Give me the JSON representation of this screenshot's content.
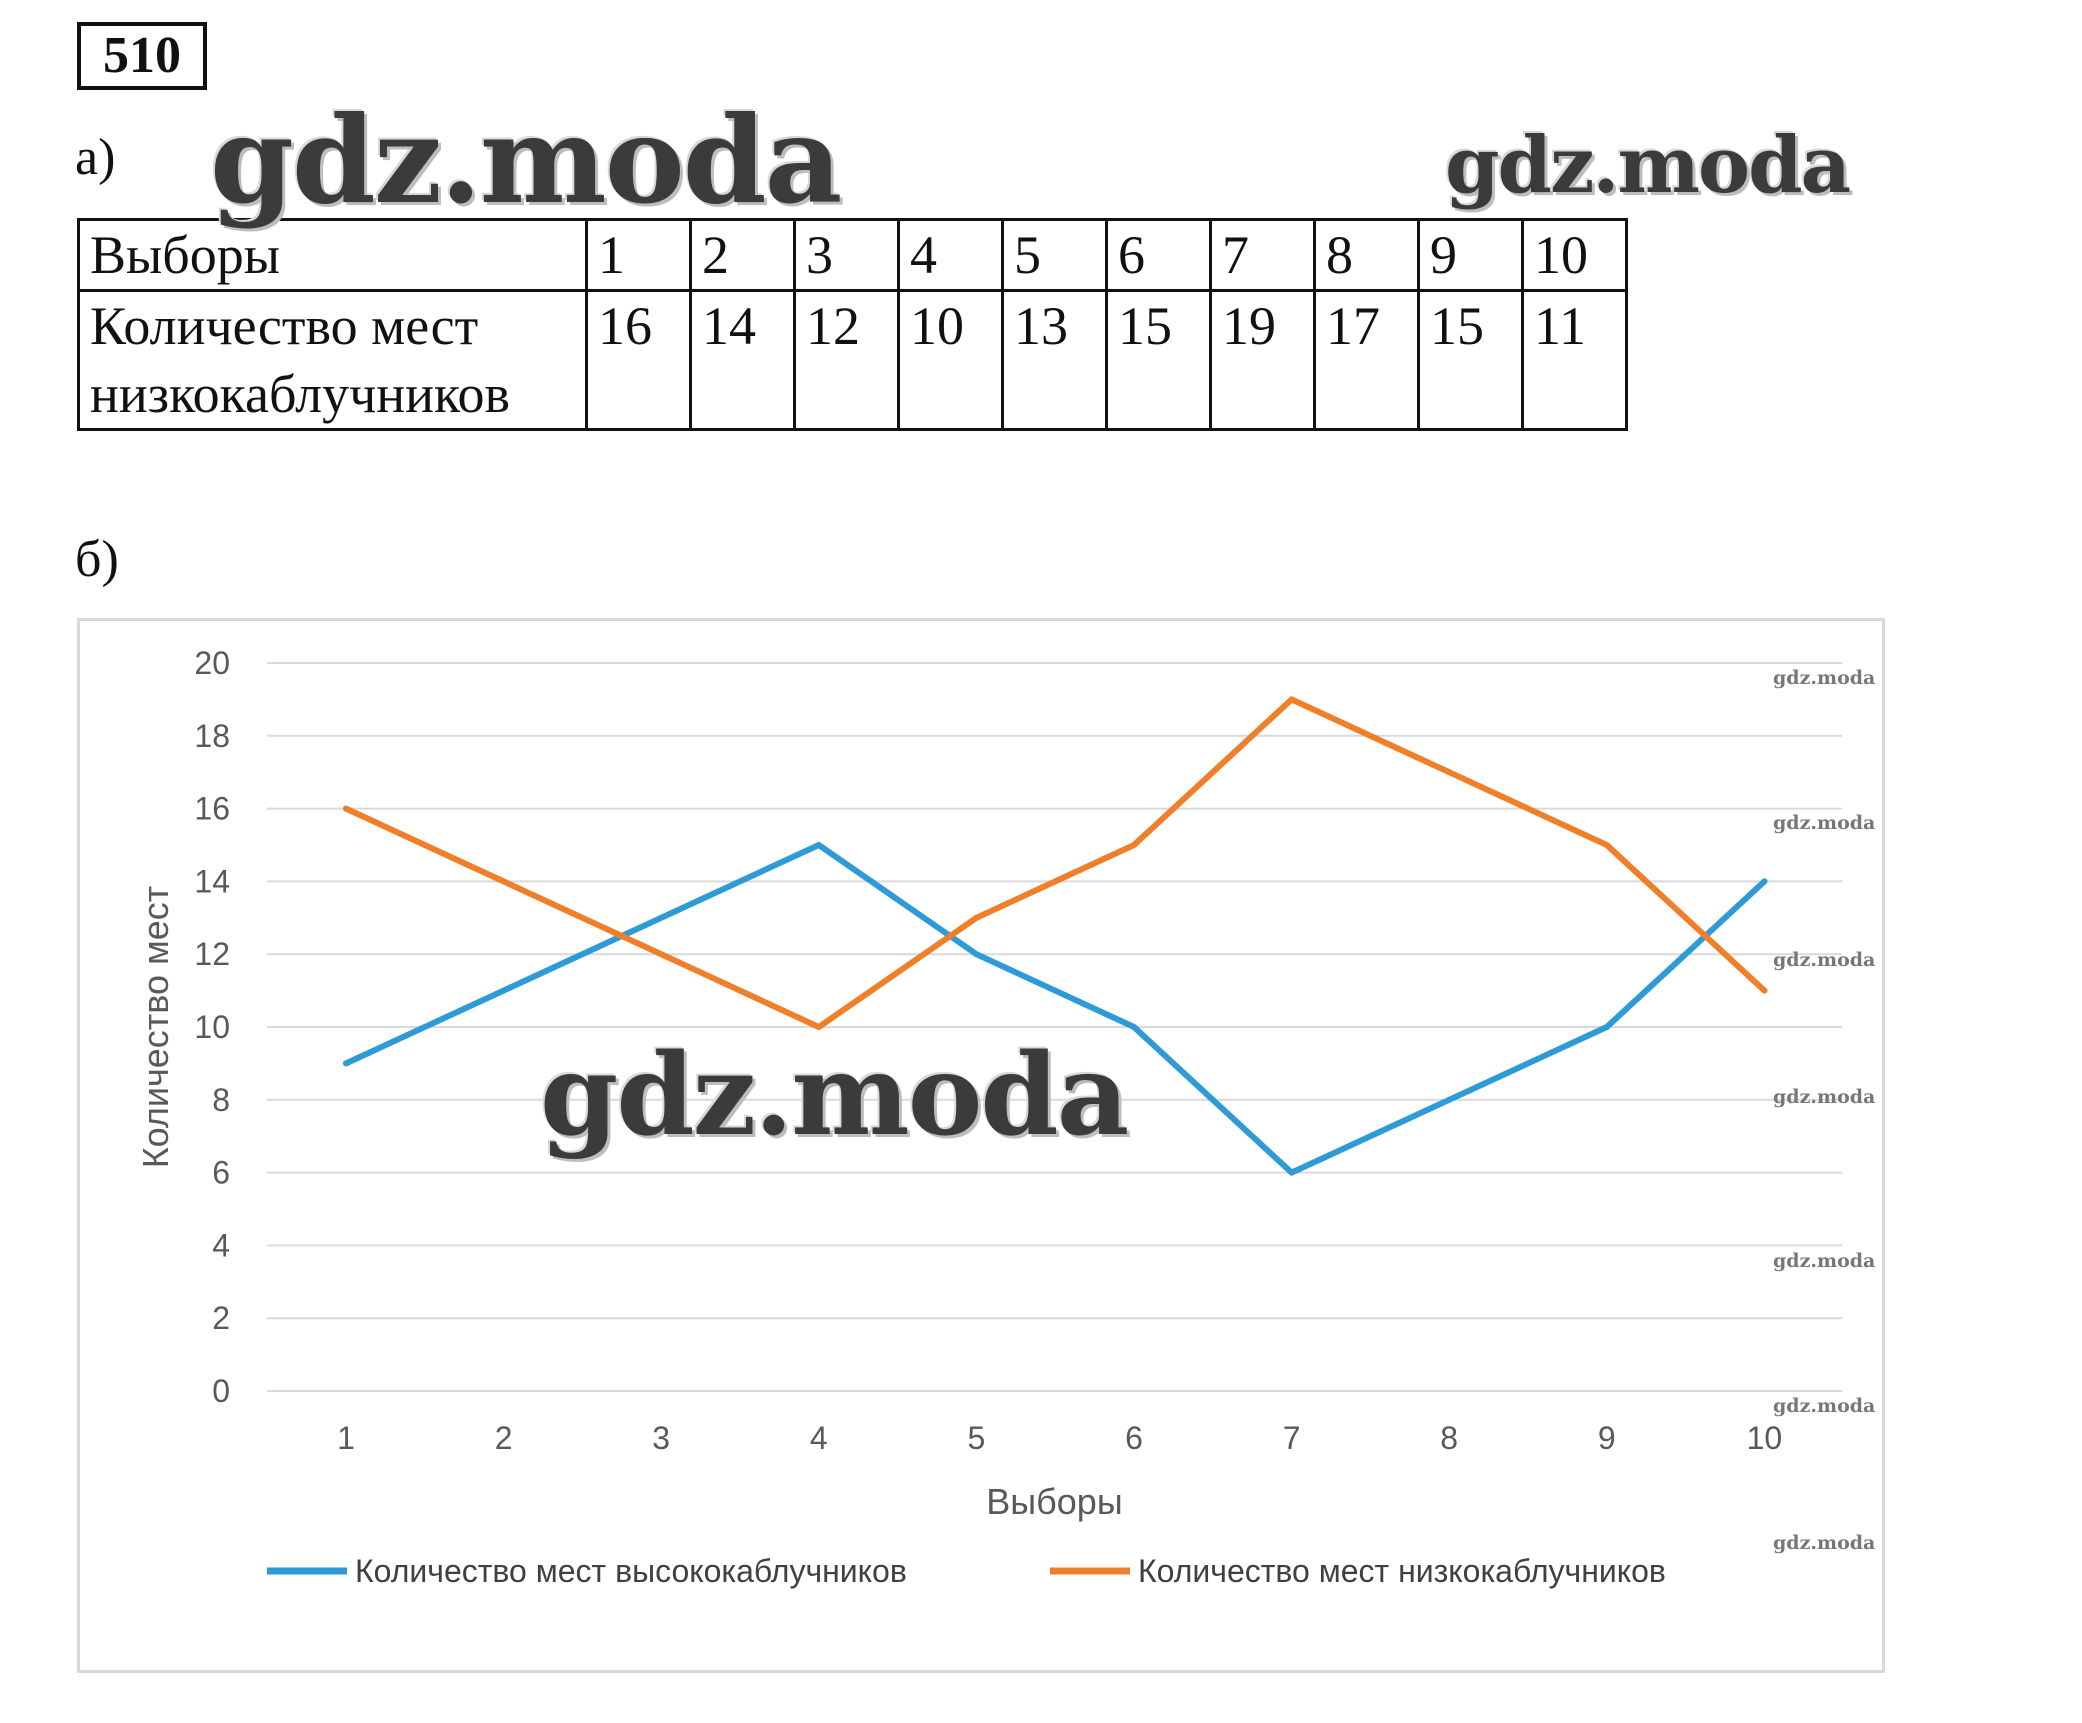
{
  "problem_number": "510",
  "part_a": {
    "label": "а)",
    "table": {
      "row1_label": "Выборы",
      "row1_values": [
        "1",
        "2",
        "3",
        "4",
        "5",
        "6",
        "7",
        "8",
        "9",
        "10"
      ],
      "row2_label_line1": "Количество мест",
      "row2_label_line2": "низкокаблучников",
      "row2_values": [
        "16",
        "14",
        "12",
        "10",
        "13",
        "15",
        "19",
        "17",
        "15",
        "11"
      ]
    }
  },
  "part_b": {
    "label": "б)"
  },
  "watermarks": {
    "text": "gdz.moda"
  },
  "chart_data": {
    "type": "line",
    "x": [
      "1",
      "2",
      "3",
      "4",
      "5",
      "6",
      "7",
      "8",
      "9",
      "10"
    ],
    "xlabel": "Выборы",
    "ylabel": "Количество мест",
    "ylim": [
      0,
      20
    ],
    "yticks": [
      "0",
      "2",
      "4",
      "6",
      "8",
      "10",
      "12",
      "14",
      "16",
      "18",
      "20"
    ],
    "grid": true,
    "legend_position": "bottom",
    "series": [
      {
        "name": "Количество мест высококаблучников",
        "color": "#2e9bd6",
        "values": [
          9,
          11,
          13,
          15,
          12,
          10,
          6,
          8,
          10,
          14
        ]
      },
      {
        "name": "Количество мест низкокаблучников",
        "color": "#f07f2a",
        "values": [
          16,
          14,
          12,
          10,
          13,
          15,
          19,
          17,
          15,
          11
        ]
      }
    ]
  }
}
